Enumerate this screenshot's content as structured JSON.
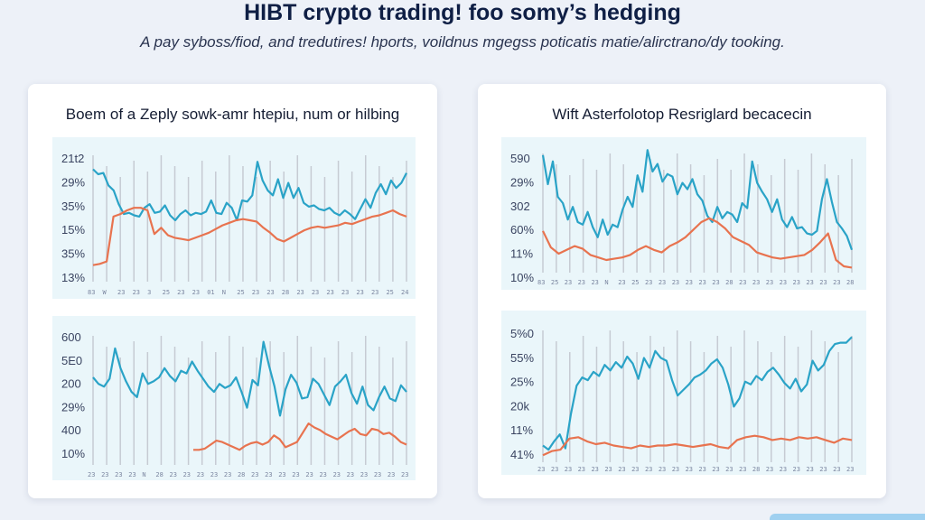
{
  "header": {
    "title": "HIBT crypto trading! foo somy’s hedging",
    "subtitle": "A pay syboss/fiod, and tredutires! hports, voildnus mgegss poticatis matie/alirctrano/dy tooking."
  },
  "panels": {
    "left": {
      "title": "Boem of a Zeply sowk-amr htepiu, num or hilbing"
    },
    "right": {
      "title": "Wift Asterfolotop Resriglard becacecin"
    }
  },
  "colors": {
    "teal": "#2aa3c7",
    "orange": "#e8734f",
    "panel_bg": "#eaf6fa",
    "grid": "#c6cbd3"
  },
  "chart_data": [
    {
      "type": "line",
      "panel": "left",
      "position": "top",
      "yticks": [
        "21t2",
        "29%",
        "35%",
        "15%",
        "35%",
        "13%"
      ],
      "xticks": [
        "83",
        "W",
        "23",
        "23",
        "3",
        "25",
        "23",
        "23",
        "01",
        "N",
        "25",
        "23",
        "23",
        "28",
        "23",
        "23",
        "23",
        "23",
        "23",
        "23",
        "25",
        "24"
      ],
      "series": [
        {
          "color": "#2aa3c7",
          "values": [
            0.83,
            0.79,
            0.8,
            0.7,
            0.66,
            0.55,
            0.47,
            0.48,
            0.46,
            0.45,
            0.52,
            0.55,
            0.48,
            0.49,
            0.54,
            0.46,
            0.42,
            0.47,
            0.5,
            0.46,
            0.48,
            0.47,
            0.49,
            0.58,
            0.48,
            0.47,
            0.56,
            0.52,
            0.42,
            0.58,
            0.57,
            0.62,
            0.89,
            0.74,
            0.66,
            0.62,
            0.75,
            0.6,
            0.72,
            0.6,
            0.68,
            0.56,
            0.53,
            0.54,
            0.51,
            0.5,
            0.52,
            0.48,
            0.46,
            0.5,
            0.47,
            0.43,
            0.51,
            0.59,
            0.52,
            0.64,
            0.71,
            0.63,
            0.74,
            0.68,
            0.72,
            0.8
          ]
        },
        {
          "color": "#e8734f",
          "values": [
            0.06,
            0.07,
            0.09,
            0.45,
            0.47,
            0.5,
            0.52,
            0.52,
            0.5,
            0.31,
            0.36,
            0.3,
            0.28,
            0.27,
            0.26,
            0.28,
            0.3,
            0.32,
            0.35,
            0.38,
            0.4,
            0.42,
            0.43,
            0.42,
            0.41,
            0.36,
            0.32,
            0.27,
            0.25,
            0.28,
            0.31,
            0.34,
            0.36,
            0.37,
            0.36,
            0.37,
            0.38,
            0.4,
            0.39,
            0.41,
            0.43,
            0.45,
            0.46,
            0.48,
            0.5,
            0.47,
            0.45
          ]
        }
      ]
    },
    {
      "type": "line",
      "panel": "left",
      "position": "bottom",
      "yticks": [
        "600",
        "5E0",
        "200",
        "29%",
        "400",
        "10%"
      ],
      "xticks": [
        "23",
        "23",
        "23",
        "23",
        "N",
        "28",
        "23",
        "23",
        "23",
        "23",
        "23",
        "28",
        "23",
        "23",
        "23",
        "23",
        "23",
        "23",
        "23",
        "23",
        "23",
        "23",
        "23",
        "23"
      ],
      "series": [
        {
          "color": "#2aa3c7",
          "values": [
            0.63,
            0.58,
            0.56,
            0.62,
            0.85,
            0.7,
            0.6,
            0.52,
            0.48,
            0.66,
            0.58,
            0.6,
            0.63,
            0.7,
            0.64,
            0.6,
            0.68,
            0.66,
            0.75,
            0.68,
            0.62,
            0.56,
            0.52,
            0.58,
            0.55,
            0.57,
            0.63,
            0.52,
            0.4,
            0.61,
            0.57,
            0.9,
            0.72,
            0.56,
            0.34,
            0.54,
            0.65,
            0.59,
            0.47,
            0.48,
            0.62,
            0.58,
            0.5,
            0.42,
            0.56,
            0.6,
            0.65,
            0.51,
            0.43,
            0.56,
            0.42,
            0.38,
            0.48,
            0.56,
            0.47,
            0.45,
            0.57,
            0.52
          ]
        },
        {
          "color": "#e8734f",
          "values": [
            0.08,
            0.08,
            0.09,
            0.12,
            0.15,
            0.14,
            0.12,
            0.1,
            0.08,
            0.11,
            0.13,
            0.14,
            0.12,
            0.14,
            0.19,
            0.16,
            0.1,
            0.12,
            0.14,
            0.21,
            0.28,
            0.25,
            0.23,
            0.2,
            0.18,
            0.16,
            0.19,
            0.22,
            0.24,
            0.2,
            0.19,
            0.24,
            0.23,
            0.2,
            0.21,
            0.18,
            0.14,
            0.12
          ]
        }
      ]
    },
    {
      "type": "line",
      "panel": "right",
      "position": "top",
      "yticks": [
        "590",
        "29%",
        "302",
        "60%",
        "11%",
        "10%"
      ],
      "xticks": [
        "83",
        "25",
        "23",
        "23",
        "23",
        "N",
        "23",
        "25",
        "23",
        "23",
        "23",
        "23",
        "23",
        "23",
        "28",
        "23",
        "23",
        "23",
        "23",
        "23",
        "23",
        "23",
        "23",
        "28"
      ],
      "series": [
        {
          "color": "#2aa3c7",
          "values": [
            0.93,
            0.7,
            0.88,
            0.6,
            0.55,
            0.42,
            0.52,
            0.4,
            0.38,
            0.48,
            0.36,
            0.28,
            0.42,
            0.3,
            0.38,
            0.36,
            0.5,
            0.6,
            0.52,
            0.77,
            0.64,
            0.97,
            0.8,
            0.86,
            0.72,
            0.78,
            0.76,
            0.62,
            0.71,
            0.66,
            0.74,
            0.62,
            0.57,
            0.45,
            0.4,
            0.52,
            0.43,
            0.48,
            0.46,
            0.4,
            0.55,
            0.51,
            0.88,
            0.71,
            0.64,
            0.58,
            0.48,
            0.58,
            0.42,
            0.36,
            0.44,
            0.35,
            0.36,
            0.31,
            0.3,
            0.33,
            0.58,
            0.74,
            0.56,
            0.4,
            0.35,
            0.29,
            0.18
          ]
        },
        {
          "color": "#e8734f",
          "values": [
            0.33,
            0.2,
            0.15,
            0.18,
            0.21,
            0.19,
            0.14,
            0.12,
            0.1,
            0.11,
            0.12,
            0.14,
            0.18,
            0.21,
            0.18,
            0.16,
            0.21,
            0.24,
            0.28,
            0.34,
            0.4,
            0.43,
            0.4,
            0.35,
            0.28,
            0.25,
            0.22,
            0.16,
            0.14,
            0.12,
            0.11,
            0.12,
            0.13,
            0.14,
            0.18,
            0.24,
            0.31,
            0.1,
            0.05,
            0.04
          ]
        }
      ]
    },
    {
      "type": "line",
      "panel": "right",
      "position": "bottom",
      "yticks": [
        "5%0",
        "55%",
        "25%",
        "20k",
        "11%",
        "41%"
      ],
      "xticks": [
        "23",
        "23",
        "23",
        "23",
        "23",
        "23",
        "23",
        "23",
        "23",
        "23",
        "23",
        "23",
        "23",
        "23",
        "23",
        "23",
        "28",
        "23",
        "23",
        "23",
        "23",
        "23",
        "23",
        "23"
      ],
      "series": [
        {
          "color": "#2aa3c7",
          "values": [
            0.12,
            0.09,
            0.15,
            0.2,
            0.1,
            0.35,
            0.55,
            0.61,
            0.59,
            0.65,
            0.62,
            0.7,
            0.66,
            0.72,
            0.68,
            0.76,
            0.71,
            0.6,
            0.75,
            0.68,
            0.8,
            0.75,
            0.73,
            0.59,
            0.48,
            0.52,
            0.56,
            0.61,
            0.63,
            0.66,
            0.71,
            0.74,
            0.68,
            0.56,
            0.4,
            0.46,
            0.58,
            0.56,
            0.62,
            0.59,
            0.65,
            0.68,
            0.63,
            0.57,
            0.53,
            0.6,
            0.51,
            0.56,
            0.73,
            0.66,
            0.7,
            0.8,
            0.85,
            0.86,
            0.86,
            0.9
          ]
        },
        {
          "color": "#e8734f",
          "values": [
            0.05,
            0.08,
            0.09,
            0.17,
            0.18,
            0.15,
            0.13,
            0.14,
            0.12,
            0.11,
            0.1,
            0.12,
            0.11,
            0.12,
            0.12,
            0.13,
            0.12,
            0.11,
            0.12,
            0.13,
            0.11,
            0.1,
            0.16,
            0.18,
            0.19,
            0.18,
            0.16,
            0.17,
            0.16,
            0.18,
            0.17,
            0.18,
            0.16,
            0.14,
            0.17,
            0.16
          ]
        }
      ]
    }
  ]
}
